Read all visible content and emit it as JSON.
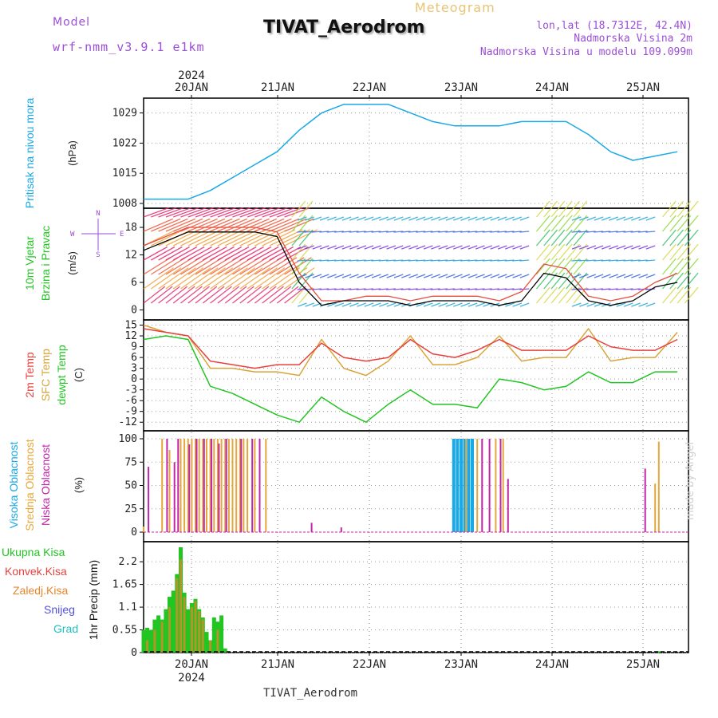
{
  "header": {
    "model_label": "Model",
    "model_name": "wrf-nmm_v3.9.1 e1km",
    "product": "Meteogram",
    "station": "TIVAT_Aerodrom",
    "coords": "lon,lat (18.7312E, 42.4N)",
    "altitude": "Nadmorska Visina 2m",
    "model_altitude": "Nadmorska Visina u modelu 109.099m",
    "footer_station": "TIVAT_Aerodrom",
    "watermark": "made by Angel"
  },
  "colors": {
    "pressure": "#1aa8e6",
    "wind_speed": "#000000",
    "gust": "#e74c3c",
    "temp2m": "#e8413c",
    "sfc_temp": "#d9a53a",
    "dewpt": "#22c522",
    "cloud_high": "#1aa8e6",
    "cloud_mid": "#e5a73b",
    "cloud_low": "#c026a8",
    "precip_total": "#22c522",
    "precip_conv": "#e8413c",
    "precip_strat": "#e5862b",
    "snow": "#5050e0",
    "graupel": "#20c0c0"
  },
  "x_axis": {
    "year": "2024",
    "days": [
      "20JAN",
      "21JAN",
      "22JAN",
      "23JAN",
      "24JAN",
      "25JAN"
    ]
  },
  "chart_data": [
    {
      "type": "line",
      "id": "pressure",
      "ylabel": "Pritisak na nivou mora",
      "unit": "(hPa)",
      "yticks": [
        "1008",
        "1015",
        "1022",
        "1029"
      ],
      "ylim": [
        1008,
        1033
      ],
      "x_hours": [
        0,
        6,
        12,
        18,
        24,
        30,
        36,
        42,
        48,
        54,
        60,
        66,
        72,
        78,
        84,
        90,
        96,
        102,
        108,
        114,
        120,
        126,
        132,
        138,
        144
      ],
      "values": [
        1009,
        1009,
        1009,
        1011,
        1014,
        1017,
        1020,
        1025,
        1029,
        1031,
        1031,
        1031,
        1029,
        1027,
        1026,
        1026,
        1026,
        1027,
        1027,
        1027,
        1024,
        1020,
        1018,
        1019,
        1020
      ]
    },
    {
      "type": "line",
      "id": "wind",
      "ylabel": "10m Vjetar Brzina i Pravac",
      "unit": "(m/s)",
      "yticks": [
        "0",
        "6",
        "12",
        "18"
      ],
      "ylim": [
        -2,
        22
      ],
      "direction_legend": [
        "N",
        "S",
        "W",
        "E"
      ],
      "x_hours": [
        0,
        6,
        12,
        18,
        24,
        30,
        36,
        42,
        48,
        54,
        60,
        66,
        72,
        78,
        84,
        90,
        96,
        102,
        108,
        114,
        120,
        126,
        132,
        138,
        144
      ],
      "series": [
        {
          "name": "speed",
          "values": [
            13,
            15,
            17,
            17,
            17,
            17,
            16,
            6,
            1,
            2,
            2,
            2,
            1,
            2,
            2,
            2,
            1,
            2,
            8,
            7,
            2,
            1,
            2,
            5,
            6
          ]
        },
        {
          "name": "gust",
          "values": [
            14,
            16,
            18,
            18,
            18,
            18,
            17,
            8,
            2,
            2,
            3,
            3,
            2,
            3,
            3,
            3,
            2,
            4,
            10,
            9,
            3,
            2,
            3,
            6,
            8
          ]
        }
      ]
    },
    {
      "type": "line",
      "id": "temperature",
      "ylabel": "2m Temp / SFC Temp / dewpt Temp",
      "unit": "(C)",
      "yticks": [
        "-12",
        "-9",
        "-6",
        "-3",
        "0",
        "3",
        "6",
        "9",
        "12",
        "15"
      ],
      "ylim": [
        -13.5,
        16
      ],
      "x_hours": [
        0,
        6,
        12,
        18,
        24,
        30,
        36,
        42,
        48,
        54,
        60,
        66,
        72,
        78,
        84,
        90,
        96,
        102,
        108,
        114,
        120,
        126,
        132,
        138,
        144
      ],
      "series": [
        {
          "name": "2m Temp",
          "values": [
            14,
            13,
            12,
            5,
            4,
            3,
            4,
            4,
            10,
            6,
            5,
            6,
            11,
            7,
            6,
            8,
            11,
            8,
            8,
            8,
            12,
            9,
            8,
            8,
            11
          ]
        },
        {
          "name": "SFC Temp",
          "values": [
            15,
            13,
            12,
            3,
            3,
            2,
            2,
            1,
            11,
            3,
            1,
            5,
            12,
            4,
            4,
            6,
            12,
            5,
            6,
            6,
            14,
            5,
            6,
            6,
            13
          ]
        },
        {
          "name": "dewpt Temp",
          "values": [
            11,
            12,
            11,
            -2,
            -4,
            -7,
            -10,
            -12,
            -5,
            -9,
            -12,
            -7,
            -3,
            -7,
            -7,
            -8,
            0,
            -1,
            -3,
            -2,
            2,
            -1,
            -1,
            2,
            2
          ]
        }
      ]
    },
    {
      "type": "bar",
      "id": "clouds",
      "ylabel": "Visoka / Srednja / Niska Oblacnost",
      "unit": "(%)",
      "yticks": [
        "0",
        "25",
        "50",
        "75",
        "100"
      ],
      "ylim": [
        0,
        100
      ],
      "series": [
        {
          "name": "Visoka Oblacnost",
          "x_hours": [
            84,
            85,
            86,
            87,
            88,
            89
          ],
          "values": [
            100,
            100,
            100,
            100,
            100,
            100
          ]
        },
        {
          "name": "Srednja Oblacnost",
          "x_hours": [
            0,
            5,
            7,
            10,
            11,
            12,
            13,
            14,
            15,
            16,
            17,
            18,
            19,
            20,
            21,
            22,
            23,
            24,
            25,
            26,
            27,
            28,
            30,
            33,
            87,
            90,
            95,
            97,
            138,
            139
          ],
          "values": [
            6,
            100,
            88,
            100,
            100,
            100,
            100,
            100,
            100,
            100,
            100,
            100,
            100,
            100,
            100,
            100,
            100,
            100,
            100,
            100,
            100,
            100,
            100,
            100,
            100,
            100,
            100,
            100,
            52,
            97
          ]
        },
        {
          "name": "Niska Oblacnost",
          "x_hours": [
            1,
            6,
            8,
            9,
            12,
            14,
            16,
            18,
            20,
            22,
            26,
            29,
            31,
            45,
            53,
            91,
            93,
            96,
            98,
            135
          ],
          "values": [
            70,
            100,
            75,
            100,
            94,
            100,
            100,
            100,
            95,
            100,
            100,
            100,
            100,
            10,
            5,
            100,
            100,
            100,
            57,
            68
          ]
        }
      ]
    },
    {
      "type": "bar",
      "id": "precip",
      "ylabel": "1hr Precip",
      "unit": "(mm)",
      "yticks": [
        "0",
        "0.55",
        "1.1",
        "1.65",
        "2.2"
      ],
      "ylim": [
        0,
        2.55
      ],
      "legend": [
        "Ukupna Kisa",
        "Konvek.Kisa",
        "Zaledj.Kisa",
        "Snijeg",
        "Grad"
      ],
      "series": [
        {
          "name": "Ukupna Kisa",
          "x_hours": [
            0,
            1,
            2,
            3,
            4,
            5,
            6,
            7,
            8,
            9,
            10,
            11,
            12,
            13,
            14,
            15,
            16,
            17,
            18,
            19,
            20,
            21,
            22,
            139
          ],
          "values": [
            0.55,
            0.6,
            0.55,
            0.8,
            0.9,
            0.8,
            1.05,
            1.35,
            1.5,
            1.9,
            2.55,
            1.45,
            1.05,
            1.2,
            1.3,
            1.05,
            0.85,
            0.5,
            0.3,
            0.85,
            0.75,
            0.9,
            0.1,
            0.03
          ]
        },
        {
          "name": "Zaledj.Kisa",
          "x_hours": [
            1,
            3,
            5,
            7,
            9,
            10,
            11,
            13,
            14,
            15,
            16,
            18,
            20
          ],
          "values": [
            0.3,
            0.55,
            0.75,
            1.1,
            1.8,
            2.25,
            1.35,
            1.1,
            1.25,
            1.0,
            0.8,
            0.3,
            0.55
          ]
        }
      ]
    }
  ]
}
